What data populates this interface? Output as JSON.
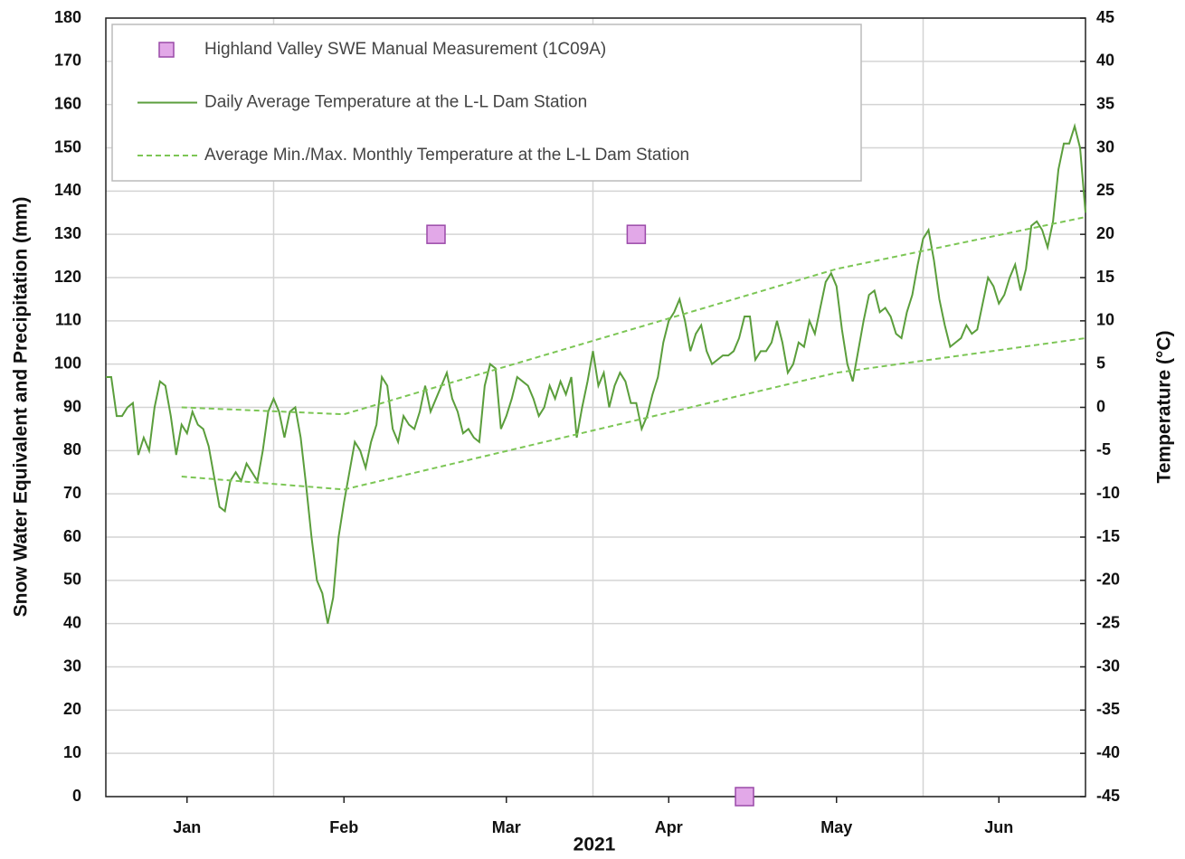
{
  "chart_data": {
    "type": "line",
    "xlabel": "2021",
    "ylabel": "Snow Water Equivalent and Precipitation (mm)",
    "y2label": "Temperature (°C)",
    "xlim": [
      0,
      181
    ],
    "xticks": [
      {
        "value": 15,
        "label": "Jan"
      },
      {
        "value": 44,
        "label": "Feb"
      },
      {
        "value": 74,
        "label": "Mar"
      },
      {
        "value": 104,
        "label": "Apr"
      },
      {
        "value": 135,
        "label": "May"
      },
      {
        "value": 165,
        "label": "Jun"
      }
    ],
    "xgrid": [
      31,
      90,
      151
    ],
    "ylim": [
      0,
      180
    ],
    "yticks": [
      0,
      10,
      20,
      30,
      40,
      50,
      60,
      70,
      80,
      90,
      100,
      110,
      120,
      130,
      140,
      150,
      160,
      170,
      180
    ],
    "y2lim": [
      -45,
      45
    ],
    "y2ticks": [
      -45,
      -40,
      -35,
      -30,
      -25,
      -20,
      -15,
      -10,
      -5,
      0,
      5,
      10,
      15,
      20,
      25,
      30,
      35,
      40,
      45
    ],
    "grid": true,
    "legend": "upper left",
    "series": [
      {
        "name": "Highland Valley SWE Manual Measurement (1C09A)",
        "style": "markers",
        "color": "#e2a8e8",
        "edge": "#9a4aa8",
        "x": [
          61,
          98,
          118
        ],
        "values": [
          130,
          130,
          0
        ]
      },
      {
        "name": "Daily Average Temperature at the L-L Dam Station",
        "style": "solid",
        "color": "#5b9e3c",
        "axis": "y2",
        "x": [
          0,
          1,
          2,
          3,
          4,
          5,
          6,
          7,
          8,
          9,
          10,
          11,
          12,
          13,
          14,
          15,
          16,
          17,
          18,
          19,
          20,
          21,
          22,
          23,
          24,
          25,
          26,
          27,
          28,
          29,
          30,
          31,
          32,
          33,
          34,
          35,
          36,
          37,
          38,
          39,
          40,
          41,
          42,
          43,
          44,
          45,
          46,
          47,
          48,
          49,
          50,
          51,
          52,
          53,
          54,
          55,
          56,
          57,
          58,
          59,
          60,
          61,
          62,
          63,
          64,
          65,
          66,
          67,
          68,
          69,
          70,
          71,
          72,
          73,
          74,
          75,
          76,
          77,
          78,
          79,
          80,
          81,
          82,
          83,
          84,
          85,
          86,
          87,
          88,
          89,
          90,
          91,
          92,
          93,
          94,
          95,
          96,
          97,
          98,
          99,
          100,
          101,
          102,
          103,
          104,
          105,
          106,
          107,
          108,
          109,
          110,
          111,
          112,
          113,
          114,
          115,
          116,
          117,
          118,
          119,
          120,
          121,
          122,
          123,
          124,
          125,
          126,
          127,
          128,
          129,
          130,
          131,
          132,
          133,
          134,
          135,
          136,
          137,
          138,
          139,
          140,
          141,
          142,
          143,
          144,
          145,
          146,
          147,
          148,
          149,
          150,
          151,
          152,
          153,
          154,
          155,
          156,
          157,
          158,
          159,
          160,
          161,
          162,
          163,
          164,
          165,
          166,
          167,
          168,
          169,
          170,
          171,
          172,
          173,
          174,
          175,
          176,
          177,
          178,
          179,
          180,
          181
        ],
        "values": [
          3.5,
          3.5,
          -1,
          -1,
          0,
          0.5,
          -5.5,
          -3.5,
          -5,
          0,
          3,
          2.5,
          -1,
          -5.5,
          -2,
          -3,
          -0.5,
          -2,
          -2.5,
          -4.5,
          -8,
          -11.5,
          -12,
          -8.5,
          -7.5,
          -8.5,
          -6.5,
          -7.5,
          -8.5,
          -5,
          -0.5,
          1,
          -0.5,
          -3.5,
          -0.5,
          0,
          -3.5,
          -9,
          -15,
          -20,
          -21.5,
          -25,
          -22,
          -15,
          -11,
          -7.5,
          -4,
          -5,
          -7,
          -4,
          -2,
          3.5,
          2.5,
          -2.5,
          -4,
          -1,
          -2,
          -2.5,
          -0.5,
          2.5,
          -0.5,
          1,
          2.5,
          4,
          1,
          -0.5,
          -3,
          -2.5,
          -3.5,
          -4,
          2.5,
          5,
          4.5,
          -2.5,
          -1,
          1,
          3.5,
          3,
          2.5,
          1,
          -1,
          0,
          2.5,
          1,
          3,
          1.5,
          3.5,
          -3.5,
          0,
          3,
          6.5,
          2.5,
          4,
          0,
          2.5,
          4,
          3,
          0.5,
          0.5,
          -2.5,
          -1,
          1.5,
          3.5,
          7.5,
          10,
          11,
          12.5,
          10,
          6.5,
          8.5,
          9.5,
          6.5,
          5,
          5.5,
          6,
          6,
          6.5,
          8,
          10.5,
          10.5,
          5.5,
          6.5,
          6.5,
          7.5,
          10,
          7.5,
          4,
          5,
          7.5,
          7,
          10,
          8.5,
          11.5,
          14.5,
          15.5,
          14,
          9,
          5,
          3,
          6.5,
          10,
          13,
          13.5,
          11,
          11.5,
          10.5,
          8.5,
          8,
          11,
          13,
          16.5,
          19.5,
          20.5,
          17,
          12.5,
          9.5,
          7,
          7.5,
          8,
          9.5,
          8.5,
          9,
          12,
          15,
          14,
          12,
          13,
          15,
          16.5,
          13.5,
          16,
          21,
          21.5,
          20.5,
          18.5,
          21.5,
          27.5,
          30.5,
          30.5,
          32.5,
          30,
          22.5
        ]
      },
      {
        "name": "Average Min./Max. Monthly Temperature at the L-L Dam Station",
        "style": "dashed",
        "color": "#7cc655",
        "axis": "y2",
        "x": [
          14,
          44,
          135,
          181
        ],
        "values": [
          0,
          -0.8,
          16,
          22
        ]
      },
      {
        "style": "dashed",
        "color": "#7cc655",
        "axis": "y2",
        "x": [
          14,
          44,
          135,
          181
        ],
        "values": [
          -8,
          -9.5,
          4,
          8
        ]
      }
    ]
  }
}
